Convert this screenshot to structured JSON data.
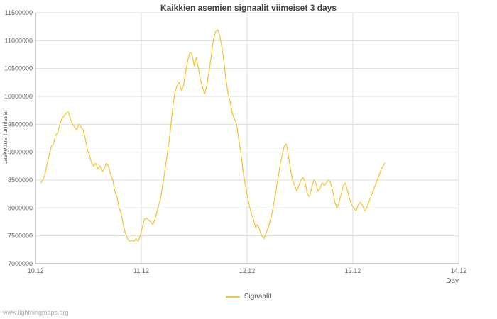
{
  "page": {
    "footer": "www.lightningmaps.org"
  },
  "chart_data": {
    "type": "line",
    "title": "Kaikkien asemien signaalit viimeiset 3 days",
    "xlabel": "Day",
    "ylabel": "Laskettua tunnissa",
    "xlim": [
      0,
      4
    ],
    "ylim": [
      7000000,
      11500000
    ],
    "grid": true,
    "grid_color": "#dddddd",
    "axis_color": "#999999",
    "text_color": "#666666",
    "legend_position": "bottom-center",
    "x_ticks": [
      {
        "pos": 0,
        "label": "10.12"
      },
      {
        "pos": 1,
        "label": "11.12"
      },
      {
        "pos": 2,
        "label": "12.12"
      },
      {
        "pos": 3,
        "label": "13.12"
      },
      {
        "pos": 4,
        "label": "14.12"
      }
    ],
    "y_ticks": [
      {
        "value": 7000000,
        "label": "7000000"
      },
      {
        "value": 7500000,
        "label": "7500000"
      },
      {
        "value": 8000000,
        "label": "8000000"
      },
      {
        "value": 8500000,
        "label": "8500000"
      },
      {
        "value": 9000000,
        "label": "9000000"
      },
      {
        "value": 9500000,
        "label": "9500000"
      },
      {
        "value": 10000000,
        "label": "10000000"
      },
      {
        "value": 10500000,
        "label": "10500000"
      },
      {
        "value": 11000000,
        "label": "11000000"
      },
      {
        "value": 11500000,
        "label": "11500000"
      }
    ],
    "legend": [
      {
        "label": "Signaalit",
        "color": "#f2c83e"
      }
    ],
    "series": [
      {
        "name": "Signaalit",
        "color": "#f2c83e",
        "points": [
          [
            0.05,
            8450000
          ],
          [
            0.07,
            8500000
          ],
          [
            0.09,
            8600000
          ],
          [
            0.11,
            8800000
          ],
          [
            0.13,
            8950000
          ],
          [
            0.15,
            9100000
          ],
          [
            0.17,
            9150000
          ],
          [
            0.19,
            9300000
          ],
          [
            0.21,
            9350000
          ],
          [
            0.23,
            9500000
          ],
          [
            0.25,
            9600000
          ],
          [
            0.27,
            9650000
          ],
          [
            0.29,
            9700000
          ],
          [
            0.31,
            9720000
          ],
          [
            0.33,
            9600000
          ],
          [
            0.35,
            9500000
          ],
          [
            0.37,
            9450000
          ],
          [
            0.39,
            9400000
          ],
          [
            0.41,
            9500000
          ],
          [
            0.43,
            9450000
          ],
          [
            0.45,
            9400000
          ],
          [
            0.47,
            9250000
          ],
          [
            0.49,
            9050000
          ],
          [
            0.51,
            8950000
          ],
          [
            0.53,
            8800000
          ],
          [
            0.55,
            8750000
          ],
          [
            0.57,
            8800000
          ],
          [
            0.59,
            8700000
          ],
          [
            0.61,
            8750000
          ],
          [
            0.63,
            8650000
          ],
          [
            0.65,
            8700000
          ],
          [
            0.67,
            8800000
          ],
          [
            0.69,
            8750000
          ],
          [
            0.71,
            8600000
          ],
          [
            0.73,
            8500000
          ],
          [
            0.75,
            8300000
          ],
          [
            0.77,
            8200000
          ],
          [
            0.79,
            8000000
          ],
          [
            0.81,
            7900000
          ],
          [
            0.83,
            7700000
          ],
          [
            0.85,
            7550000
          ],
          [
            0.87,
            7450000
          ],
          [
            0.89,
            7400000
          ],
          [
            0.91,
            7420000
          ],
          [
            0.93,
            7400000
          ],
          [
            0.95,
            7450000
          ],
          [
            0.97,
            7400000
          ],
          [
            0.99,
            7500000
          ],
          [
            1.01,
            7650000
          ],
          [
            1.03,
            7800000
          ],
          [
            1.05,
            7820000
          ],
          [
            1.07,
            7780000
          ],
          [
            1.09,
            7750000
          ],
          [
            1.11,
            7700000
          ],
          [
            1.13,
            7800000
          ],
          [
            1.15,
            7950000
          ],
          [
            1.18,
            8150000
          ],
          [
            1.21,
            8500000
          ],
          [
            1.24,
            8900000
          ],
          [
            1.27,
            9300000
          ],
          [
            1.3,
            9850000
          ],
          [
            1.32,
            10100000
          ],
          [
            1.34,
            10200000
          ],
          [
            1.36,
            10250000
          ],
          [
            1.38,
            10100000
          ],
          [
            1.4,
            10200000
          ],
          [
            1.42,
            10450000
          ],
          [
            1.44,
            10650000
          ],
          [
            1.46,
            10800000
          ],
          [
            1.48,
            10750000
          ],
          [
            1.5,
            10550000
          ],
          [
            1.52,
            10700000
          ],
          [
            1.54,
            10500000
          ],
          [
            1.56,
            10300000
          ],
          [
            1.58,
            10150000
          ],
          [
            1.6,
            10050000
          ],
          [
            1.62,
            10200000
          ],
          [
            1.64,
            10450000
          ],
          [
            1.66,
            10700000
          ],
          [
            1.68,
            11000000
          ],
          [
            1.7,
            11150000
          ],
          [
            1.72,
            11200000
          ],
          [
            1.74,
            11100000
          ],
          [
            1.76,
            10900000
          ],
          [
            1.78,
            10650000
          ],
          [
            1.8,
            10300000
          ],
          [
            1.82,
            10050000
          ],
          [
            1.84,
            9900000
          ],
          [
            1.86,
            9700000
          ],
          [
            1.88,
            9600000
          ],
          [
            1.9,
            9500000
          ],
          [
            1.92,
            9250000
          ],
          [
            1.94,
            9000000
          ],
          [
            1.96,
            8700000
          ],
          [
            1.98,
            8450000
          ],
          [
            2.0,
            8250000
          ],
          [
            2.02,
            8050000
          ],
          [
            2.04,
            7900000
          ],
          [
            2.06,
            7800000
          ],
          [
            2.08,
            7650000
          ],
          [
            2.1,
            7700000
          ],
          [
            2.12,
            7600000
          ],
          [
            2.14,
            7500000
          ],
          [
            2.16,
            7450000
          ],
          [
            2.18,
            7550000
          ],
          [
            2.2,
            7650000
          ],
          [
            2.23,
            7850000
          ],
          [
            2.26,
            8150000
          ],
          [
            2.29,
            8500000
          ],
          [
            2.32,
            8850000
          ],
          [
            2.35,
            9100000
          ],
          [
            2.37,
            9150000
          ],
          [
            2.39,
            8950000
          ],
          [
            2.41,
            8700000
          ],
          [
            2.43,
            8500000
          ],
          [
            2.45,
            8400000
          ],
          [
            2.47,
            8300000
          ],
          [
            2.49,
            8400000
          ],
          [
            2.51,
            8500000
          ],
          [
            2.53,
            8550000
          ],
          [
            2.55,
            8450000
          ],
          [
            2.57,
            8250000
          ],
          [
            2.59,
            8200000
          ],
          [
            2.61,
            8350000
          ],
          [
            2.63,
            8500000
          ],
          [
            2.65,
            8450000
          ],
          [
            2.67,
            8300000
          ],
          [
            2.69,
            8350000
          ],
          [
            2.71,
            8450000
          ],
          [
            2.73,
            8400000
          ],
          [
            2.75,
            8450000
          ],
          [
            2.77,
            8500000
          ],
          [
            2.79,
            8450000
          ],
          [
            2.81,
            8300000
          ],
          [
            2.83,
            8100000
          ],
          [
            2.85,
            8000000
          ],
          [
            2.87,
            8100000
          ],
          [
            2.89,
            8250000
          ],
          [
            2.91,
            8400000
          ],
          [
            2.93,
            8450000
          ],
          [
            2.95,
            8300000
          ],
          [
            2.97,
            8150000
          ],
          [
            2.99,
            8050000
          ],
          [
            3.01,
            8000000
          ],
          [
            3.03,
            7950000
          ],
          [
            3.05,
            8050000
          ],
          [
            3.07,
            8100000
          ],
          [
            3.09,
            8050000
          ],
          [
            3.11,
            7950000
          ],
          [
            3.13,
            8000000
          ],
          [
            3.15,
            8100000
          ],
          [
            3.18,
            8250000
          ],
          [
            3.21,
            8400000
          ],
          [
            3.24,
            8550000
          ],
          [
            3.27,
            8700000
          ],
          [
            3.3,
            8800000
          ]
        ]
      }
    ]
  }
}
